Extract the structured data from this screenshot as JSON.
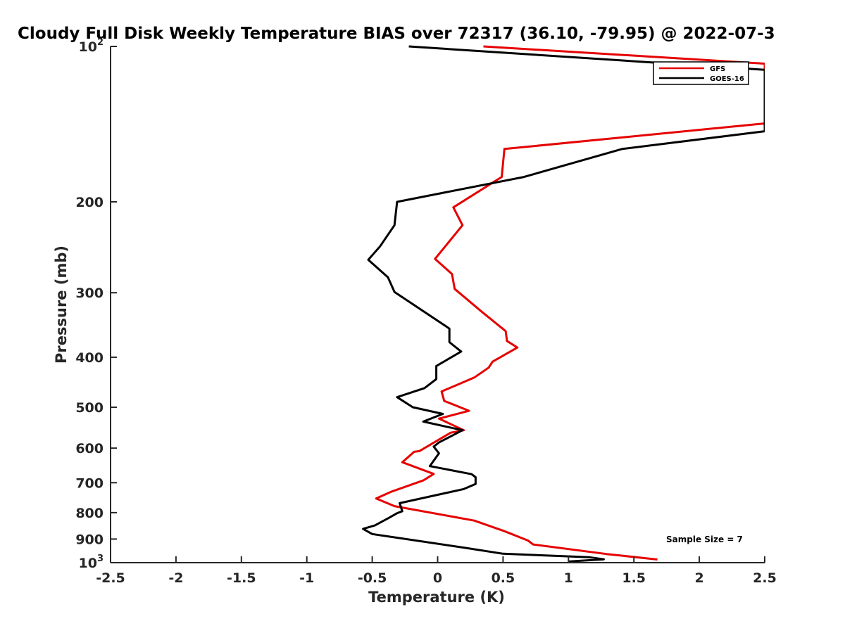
{
  "chart_data": {
    "type": "line",
    "title": "Cloudy Full Disk Weekly Temperature BIAS over 72317 (36.10, -79.95) @ 2022-07-3",
    "xlabel": "Temperature (K)",
    "ylabel": "Pressure (mb)",
    "xlim": [
      -2.5,
      2.5
    ],
    "ylim": [
      100,
      1000
    ],
    "y_scale": "log",
    "y_reversed": true,
    "grid": false,
    "legend_position": "top-right",
    "x_ticks": [
      "-2.5",
      "-2",
      "-1.5",
      "-1",
      "-0.5",
      "0",
      "0.5",
      "1",
      "1.5",
      "2",
      "2.5"
    ],
    "y_ticks": [
      {
        "value": 200,
        "label": "200"
      },
      {
        "value": 300,
        "label": "300"
      },
      {
        "value": 400,
        "label": "400"
      },
      {
        "value": 500,
        "label": "500"
      },
      {
        "value": 600,
        "label": "600"
      },
      {
        "value": 700,
        "label": "700"
      },
      {
        "value": 800,
        "label": "800"
      },
      {
        "value": 900,
        "label": "900"
      }
    ],
    "y_tick_top": {
      "base": "10",
      "exp": "2"
    },
    "y_tick_bottom": {
      "base": "10",
      "exp": "3"
    },
    "annotation": "Sample Size = 7",
    "series": [
      {
        "name": "GFS",
        "color": "#e60000",
        "points": [
          [
            0.35,
            100
          ],
          [
            2.5,
            108
          ],
          [
            2.5,
            141
          ],
          [
            0.51,
            158
          ],
          [
            0.49,
            179
          ],
          [
            0.12,
            205
          ],
          [
            0.19,
            222
          ],
          [
            -0.02,
            258
          ],
          [
            0.11,
            276
          ],
          [
            0.13,
            295
          ],
          [
            0.34,
            327
          ],
          [
            0.52,
            356
          ],
          [
            0.53,
            372
          ],
          [
            0.61,
            383
          ],
          [
            0.42,
            408
          ],
          [
            0.39,
            419
          ],
          [
            0.28,
            438
          ],
          [
            0.03,
            466
          ],
          [
            0.05,
            486
          ],
          [
            0.24,
            508
          ],
          [
            0.01,
            526
          ],
          [
            0.2,
            554
          ],
          [
            0.1,
            560
          ],
          [
            -0.14,
            608
          ],
          [
            -0.18,
            610
          ],
          [
            -0.27,
            639
          ],
          [
            -0.03,
            673
          ],
          [
            -0.11,
            693
          ],
          [
            -0.35,
            728
          ],
          [
            -0.47,
            751
          ],
          [
            -0.33,
            777
          ],
          [
            0.28,
            829
          ],
          [
            0.51,
            869
          ],
          [
            0.69,
            906
          ],
          [
            0.73,
            922
          ],
          [
            1.29,
            962
          ],
          [
            1.68,
            986
          ]
        ]
      },
      {
        "name": "GOES-16",
        "color": "#000000",
        "points": [
          [
            -0.22,
            100
          ],
          [
            2.5,
            111
          ],
          [
            2.5,
            146
          ],
          [
            1.41,
            158
          ],
          [
            0.66,
            179
          ],
          [
            -0.31,
            200
          ],
          [
            -0.33,
            222
          ],
          [
            -0.44,
            244
          ],
          [
            -0.53,
            259
          ],
          [
            -0.38,
            280
          ],
          [
            -0.33,
            299
          ],
          [
            0.09,
            352
          ],
          [
            0.09,
            374
          ],
          [
            0.18,
            390
          ],
          [
            -0.01,
            416
          ],
          [
            -0.01,
            441
          ],
          [
            -0.1,
            459
          ],
          [
            -0.31,
            478
          ],
          [
            -0.19,
            500
          ],
          [
            0.04,
            515
          ],
          [
            -0.11,
            533
          ],
          [
            0.19,
            554
          ],
          [
            0.01,
            585
          ],
          [
            -0.03,
            596
          ],
          [
            0.01,
            614
          ],
          [
            -0.06,
            650
          ],
          [
            0.26,
            674
          ],
          [
            0.29,
            683
          ],
          [
            0.29,
            704
          ],
          [
            0.2,
            720
          ],
          [
            -0.29,
            767
          ],
          [
            -0.27,
            795
          ],
          [
            -0.31,
            802
          ],
          [
            -0.38,
            821
          ],
          [
            -0.48,
            847
          ],
          [
            -0.57,
            860
          ],
          [
            -0.5,
            880
          ],
          [
            0.2,
            935
          ],
          [
            0.5,
            961
          ],
          [
            1.16,
            976
          ],
          [
            1.27,
            985
          ],
          [
            1.0,
            995
          ]
        ]
      }
    ]
  }
}
